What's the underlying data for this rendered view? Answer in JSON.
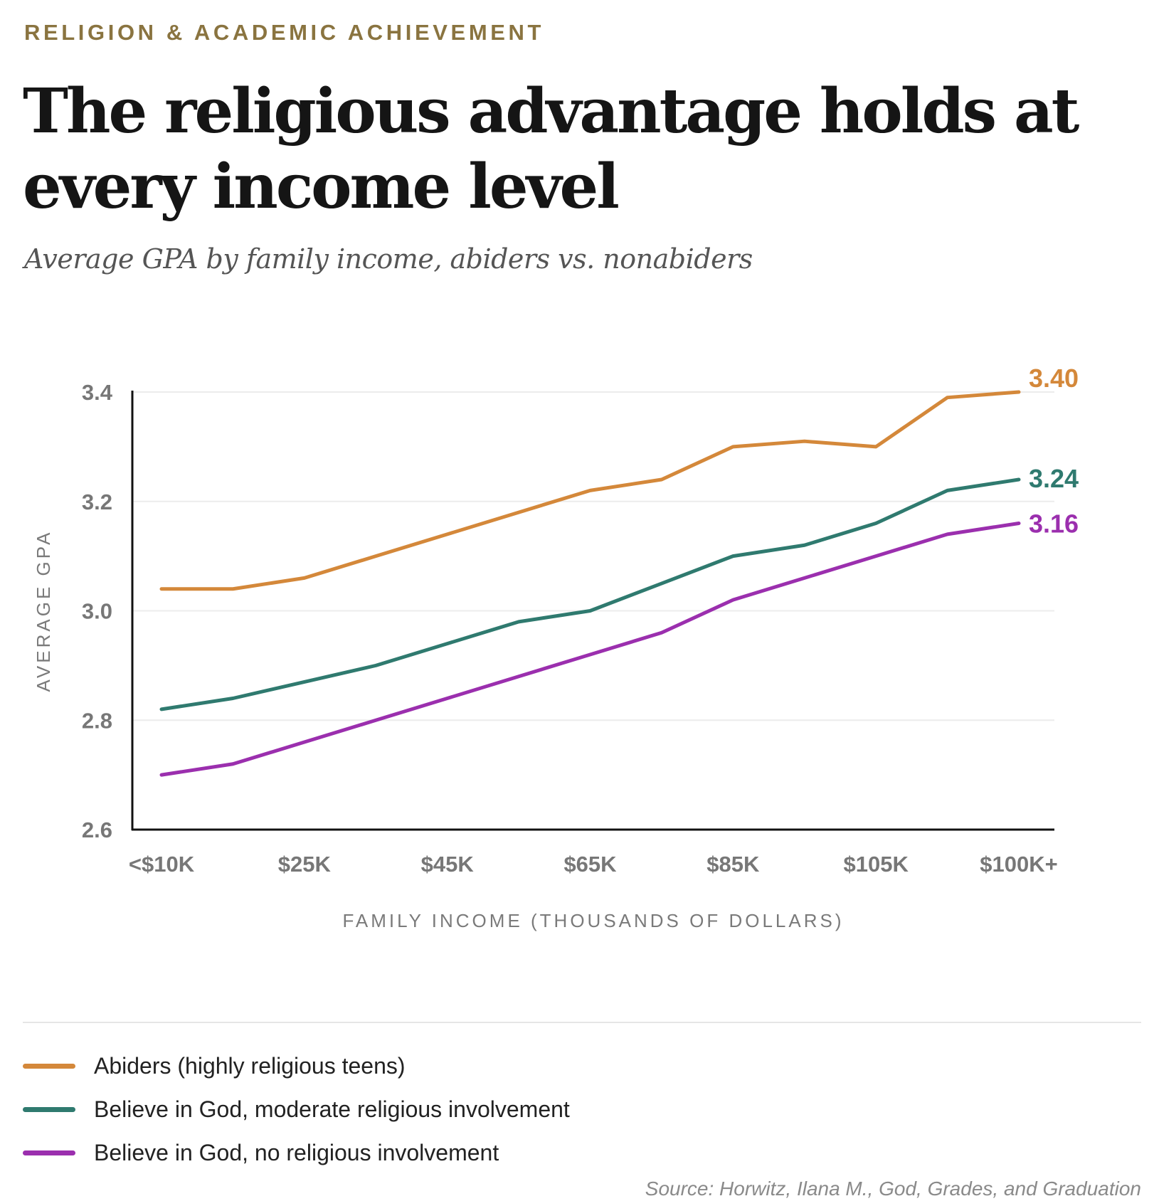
{
  "kicker": "RELIGION & ACADEMIC ACHIEVEMENT",
  "title": "The religious advantage holds at every income level",
  "subtitle": "Average GPA by family income, abiders vs. nonabiders",
  "source": "Source: Horwitz, Ilana M., God, Grades, and Graduation",
  "chart_data": {
    "type": "line",
    "xlabel": "FAMILY INCOME (THOUSANDS OF DOLLARS)",
    "ylabel": "AVERAGE GPA",
    "ylim": [
      2.6,
      3.4
    ],
    "yticks": [
      "2.6",
      "2.8",
      "3.0",
      "3.2",
      "3.4"
    ],
    "yticks_values": [
      2.6,
      2.8,
      3.0,
      3.2,
      3.4
    ],
    "xtick_labels": [
      "<$10K",
      "$25K",
      "$45K",
      "$65K",
      "$85K",
      "$105K",
      "$100K+"
    ],
    "xtick_positions": [
      0,
      2,
      4,
      6,
      8,
      10,
      12
    ],
    "x": [
      0,
      1,
      2,
      3,
      4,
      5,
      6,
      7,
      8,
      9,
      10,
      11,
      12
    ],
    "grid": true,
    "series": [
      {
        "name": "Abiders (highly religious teens)",
        "color": "#d4883a",
        "values": [
          3.04,
          3.04,
          3.06,
          3.1,
          3.14,
          3.18,
          3.22,
          3.24,
          3.3,
          3.31,
          3.3,
          3.39,
          3.4
        ],
        "end_label": "3.40"
      },
      {
        "name": "Believe in God, moderate religious involvement",
        "color": "#2f7a6f",
        "values": [
          2.82,
          2.84,
          2.87,
          2.9,
          2.94,
          2.98,
          3.0,
          3.05,
          3.1,
          3.12,
          3.16,
          3.22,
          3.24
        ],
        "end_label": "3.24"
      },
      {
        "name": "Believe in God, no religious involvement",
        "color": "#9b2fae",
        "values": [
          2.7,
          2.72,
          2.76,
          2.8,
          2.84,
          2.88,
          2.92,
          2.96,
          3.02,
          3.06,
          3.1,
          3.14,
          3.16
        ],
        "end_label": "3.16"
      }
    ]
  }
}
